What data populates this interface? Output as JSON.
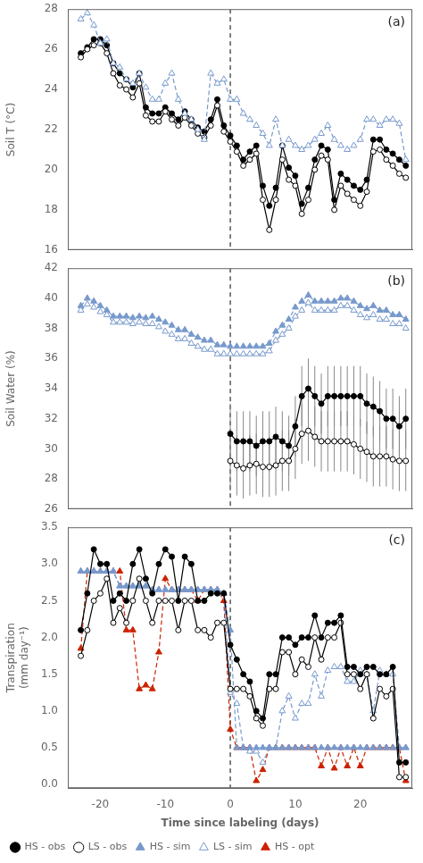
{
  "chart_data": [
    {
      "type": "line",
      "ylabel": "Soil T (°C)",
      "annotations": [
        "(a)"
      ],
      "xlim": [
        -25,
        28
      ],
      "xticks": [
        -20,
        -10,
        0,
        10,
        20
      ],
      "ylim": [
        16,
        28
      ],
      "yticks": [
        16,
        18,
        20,
        22,
        24,
        26,
        28
      ],
      "grid": false,
      "tick_labels": "y",
      "vlines": [
        0
      ],
      "x": [
        -23,
        -22,
        -21,
        -20,
        -19,
        -18,
        -17,
        -16,
        -15,
        -14,
        -13,
        -12,
        -11,
        -10,
        -9,
        -8,
        -7,
        -6,
        -5,
        -4,
        -3,
        -2,
        -1,
        0,
        1,
        2,
        3,
        4,
        5,
        6,
        7,
        8,
        9,
        10,
        11,
        12,
        13,
        14,
        15,
        16,
        17,
        18,
        19,
        20,
        21,
        22,
        23,
        24,
        25,
        26,
        27
      ],
      "series": [
        {
          "color": "#7799cc",
          "marker": "open-triangle",
          "line_style": "dashed",
          "values": [
            27.5,
            27.8,
            27.2,
            26.3,
            26.5,
            25.3,
            25.1,
            24.5,
            24.3,
            24.8,
            24.1,
            23.5,
            23.5,
            24.3,
            24.8,
            23.5,
            22.8,
            22.5,
            22.0,
            21.5,
            24.8,
            24.3,
            24.5,
            23.5,
            23.5,
            22.8,
            22.5,
            22.2,
            21.8,
            21.2,
            22.5,
            21.2,
            21.5,
            21.2,
            21.0,
            21.2,
            21.5,
            21.8,
            22.2,
            21.5,
            21.2,
            21.0,
            21.2,
            21.5,
            22.5,
            22.5,
            22.2,
            22.5,
            22.5,
            22.3,
            20.5
          ]
        },
        {
          "color": "#000000",
          "marker": "open-circle",
          "line_style": "solid",
          "values": [
            25.6,
            26.0,
            26.2,
            26.3,
            25.8,
            24.8,
            24.2,
            24.0,
            23.6,
            24.3,
            22.7,
            22.4,
            22.4,
            22.9,
            22.5,
            22.2,
            22.6,
            22.2,
            21.8,
            21.6,
            22.2,
            23.2,
            21.9,
            21.4,
            20.9,
            20.2,
            20.5,
            20.8,
            18.5,
            17.0,
            18.5,
            20.5,
            19.5,
            19.2,
            17.8,
            18.5,
            20.0,
            20.7,
            20.5,
            18.0,
            19.2,
            18.8,
            18.5,
            18.2,
            18.9,
            20.9,
            21.0,
            20.5,
            20.2,
            19.8,
            19.6
          ]
        },
        {
          "color": "#000000",
          "marker": "circle",
          "line_style": "solid",
          "values": [
            25.8,
            26.1,
            26.5,
            26.5,
            26.2,
            25.3,
            24.8,
            24.5,
            24.1,
            24.8,
            23.1,
            22.8,
            22.8,
            23.1,
            22.8,
            22.5,
            22.9,
            22.5,
            22.1,
            21.9,
            22.5,
            23.5,
            22.2,
            21.7,
            21.2,
            20.5,
            20.9,
            21.2,
            19.2,
            18.2,
            19.1,
            21.2,
            20.1,
            19.7,
            18.3,
            19.1,
            20.5,
            21.2,
            21.0,
            18.5,
            19.8,
            19.5,
            19.2,
            19.0,
            19.5,
            21.5,
            21.5,
            21.0,
            20.8,
            20.5,
            20.2
          ]
        }
      ]
    },
    {
      "type": "line",
      "ylabel": "Soil Water (%)",
      "annotations": [
        "(b)"
      ],
      "xlim": [
        -25,
        28
      ],
      "xticks": [
        -20,
        -10,
        0,
        10,
        20
      ],
      "ylim": [
        26,
        42
      ],
      "yticks": [
        26,
        28,
        30,
        32,
        34,
        36,
        38,
        40,
        42
      ],
      "grid": false,
      "tick_labels": "y",
      "vlines": [
        0
      ],
      "x": [
        -23,
        -22,
        -21,
        -20,
        -19,
        -18,
        -17,
        -16,
        -15,
        -14,
        -13,
        -12,
        -11,
        -10,
        -9,
        -8,
        -7,
        -6,
        -5,
        -4,
        -3,
        -2,
        -1,
        0,
        1,
        2,
        3,
        4,
        5,
        6,
        7,
        8,
        9,
        10,
        11,
        12,
        13,
        14,
        15,
        16,
        17,
        18,
        19,
        20,
        21,
        22,
        23,
        24,
        25,
        26,
        27
      ],
      "series": [
        {
          "color": "#7799cc",
          "marker": "open-triangle",
          "line_style": "dashed",
          "values": [
            39.2,
            39.6,
            39.4,
            39.1,
            38.9,
            38.4,
            38.4,
            38.4,
            38.3,
            38.4,
            38.3,
            38.3,
            38.1,
            37.8,
            37.6,
            37.3,
            37.3,
            37.0,
            36.8,
            36.6,
            36.6,
            36.3,
            36.3,
            36.3,
            36.3,
            36.3,
            36.3,
            36.3,
            36.3,
            36.5,
            37.2,
            37.6,
            38.0,
            38.8,
            39.2,
            39.7,
            39.2,
            39.2,
            39.2,
            39.2,
            39.5,
            39.5,
            39.2,
            38.9,
            38.7,
            38.9,
            38.6,
            38.6,
            38.3,
            38.3,
            38.0
          ]
        },
        {
          "color": "#7799cc",
          "marker": "triangle",
          "line_style": "dashed",
          "values": [
            39.5,
            40.0,
            39.8,
            39.5,
            39.2,
            38.8,
            38.8,
            38.8,
            38.7,
            38.8,
            38.7,
            38.8,
            38.6,
            38.4,
            38.2,
            37.9,
            37.9,
            37.6,
            37.4,
            37.2,
            37.2,
            36.9,
            36.9,
            36.8,
            36.8,
            36.8,
            36.8,
            36.8,
            36.8,
            37.0,
            37.8,
            38.2,
            38.6,
            39.4,
            39.8,
            40.2,
            39.8,
            39.8,
            39.8,
            39.8,
            40.0,
            40.0,
            39.8,
            39.5,
            39.3,
            39.5,
            39.2,
            39.2,
            38.9,
            38.9,
            38.6
          ]
        },
        {
          "color": "#000000",
          "marker": "open-circle",
          "line_style": "solid",
          "x": [
            0,
            1,
            2,
            3,
            4,
            5,
            6,
            7,
            8,
            9,
            10,
            11,
            12,
            13,
            14,
            15,
            16,
            17,
            18,
            19,
            20,
            21,
            22,
            23,
            24,
            25,
            26,
            27
          ],
          "values": [
            29.2,
            28.9,
            28.7,
            28.9,
            29.0,
            28.8,
            28.8,
            28.9,
            29.2,
            29.2,
            30.0,
            31.0,
            31.2,
            30.8,
            30.5,
            30.5,
            30.5,
            30.5,
            30.5,
            30.3,
            30.0,
            29.8,
            29.5,
            29.5,
            29.5,
            29.3,
            29.2,
            29.2
          ],
          "errors": [
            2.0,
            2.0,
            2.0,
            2.0,
            2.0,
            2.0,
            2.0,
            2.0,
            2.0,
            2.0,
            2.0,
            2.0,
            2.0,
            2.0,
            2.0,
            2.0,
            2.0,
            2.0,
            2.0,
            2.0,
            2.0,
            2.0,
            2.0,
            2.0,
            2.0,
            2.0,
            2.0,
            2.0
          ]
        },
        {
          "color": "#000000",
          "marker": "circle",
          "line_style": "solid",
          "x": [
            0,
            1,
            2,
            3,
            4,
            5,
            6,
            7,
            8,
            9,
            10,
            11,
            12,
            13,
            14,
            15,
            16,
            17,
            18,
            19,
            20,
            21,
            22,
            23,
            24,
            25,
            26,
            27
          ],
          "values": [
            31.0,
            30.5,
            30.5,
            30.5,
            30.2,
            30.5,
            30.5,
            30.8,
            30.5,
            30.2,
            31.5,
            33.5,
            34.0,
            33.5,
            33.0,
            33.5,
            33.5,
            33.5,
            33.5,
            33.5,
            33.5,
            33.0,
            32.8,
            32.5,
            32.0,
            32.0,
            31.5,
            32.0
          ],
          "errors": [
            2.0,
            2.0,
            2.0,
            2.0,
            2.0,
            2.0,
            2.0,
            2.0,
            2.0,
            2.0,
            2.0,
            2.0,
            2.0,
            2.0,
            2.0,
            2.0,
            2.0,
            2.0,
            2.0,
            2.0,
            2.0,
            2.0,
            2.0,
            2.0,
            2.0,
            2.0,
            2.0,
            2.0
          ]
        }
      ]
    },
    {
      "type": "line",
      "ylabel": "Transpiration\n(mm day⁻¹)",
      "xlabel": "Time since labeling (days)",
      "annotations": [
        "(c)"
      ],
      "xlim": [
        -25,
        28
      ],
      "xticks": [
        -20,
        -10,
        0,
        10,
        20
      ],
      "ylim": [
        -0.05,
        3.5
      ],
      "yticks": [
        {
          "value": 0,
          "label": "0.0"
        },
        0.5,
        {
          "value": 1,
          "label": "1.0"
        },
        1.5,
        {
          "value": 2,
          "label": "2.0"
        },
        2.5,
        {
          "value": 3,
          "label": "3.0"
        },
        3.5
      ],
      "grid": false,
      "legend": "lower left",
      "vlines": [
        0
      ],
      "x": [
        -23,
        -22,
        -21,
        -20,
        -19,
        -18,
        -17,
        -16,
        -15,
        -14,
        -13,
        -12,
        -11,
        -10,
        -9,
        -8,
        -7,
        -6,
        -5,
        -4,
        -3,
        -2,
        -1,
        0,
        1,
        2,
        3,
        4,
        5,
        6,
        7,
        8,
        9,
        10,
        11,
        12,
        13,
        14,
        15,
        16,
        17,
        18,
        19,
        20,
        21,
        22,
        23,
        24,
        25,
        26,
        27
      ],
      "series": [
        {
          "name": "HS - obs",
          "color": "#000000",
          "marker": "circle",
          "line_style": "solid",
          "values": [
            2.1,
            2.6,
            3.2,
            3.0,
            3.0,
            2.5,
            2.6,
            2.5,
            3.0,
            3.2,
            2.8,
            2.6,
            3.0,
            3.2,
            3.1,
            2.5,
            3.1,
            3.0,
            2.5,
            2.5,
            2.6,
            2.6,
            2.6,
            1.9,
            1.7,
            1.5,
            1.4,
            1.0,
            0.9,
            1.5,
            1.5,
            2.0,
            2.0,
            1.9,
            2.0,
            2.0,
            2.3,
            2.0,
            2.2,
            2.2,
            2.3,
            1.6,
            1.6,
            1.5,
            1.6,
            1.6,
            1.5,
            1.5,
            1.6,
            0.3,
            0.3
          ]
        },
        {
          "name": "LS - obs",
          "color": "#000000",
          "marker": "open-circle",
          "line_style": "solid",
          "values": [
            1.75,
            2.1,
            2.5,
            2.6,
            2.8,
            2.2,
            2.4,
            2.2,
            2.5,
            2.8,
            2.5,
            2.2,
            2.5,
            2.5,
            2.5,
            2.1,
            2.5,
            2.5,
            2.1,
            2.1,
            2.0,
            2.2,
            2.2,
            1.3,
            1.3,
            1.3,
            1.2,
            0.9,
            0.8,
            1.3,
            1.3,
            1.8,
            1.8,
            1.5,
            1.7,
            1.6,
            2.0,
            1.7,
            2.0,
            2.0,
            2.2,
            1.5,
            1.5,
            1.3,
            1.5,
            0.9,
            1.3,
            1.2,
            1.3,
            0.1,
            0.1
          ]
        },
        {
          "name": "HS - sim",
          "color": "#7799cc",
          "marker": "triangle",
          "line_style": "dashed",
          "values": [
            2.9,
            2.9,
            2.9,
            2.9,
            2.9,
            2.9,
            2.7,
            2.7,
            2.7,
            2.7,
            2.7,
            2.65,
            2.65,
            2.65,
            2.65,
            2.65,
            2.65,
            2.65,
            2.65,
            2.65,
            2.65,
            2.65,
            2.6,
            2.1,
            0.5,
            0.5,
            0.5,
            0.5,
            0.5,
            0.5,
            0.5,
            0.5,
            0.5,
            0.5,
            0.5,
            0.5,
            0.5,
            0.5,
            0.5,
            0.5,
            0.5,
            0.5,
            0.5,
            0.5,
            0.5,
            0.5,
            0.5,
            0.5,
            0.5,
            0.5,
            0.5
          ]
        },
        {
          "name": "LS - sim",
          "color": "#7799cc",
          "marker": "open-triangle",
          "line_style": "dashed",
          "values": [
            2.9,
            2.9,
            2.9,
            2.9,
            2.9,
            2.9,
            2.7,
            2.7,
            2.7,
            2.7,
            2.7,
            2.65,
            2.65,
            2.65,
            2.65,
            2.65,
            2.65,
            2.65,
            2.65,
            2.65,
            2.65,
            2.65,
            2.6,
            1.25,
            1.1,
            0.5,
            0.45,
            0.45,
            0.3,
            0.5,
            0.5,
            1.0,
            1.2,
            0.9,
            1.1,
            1.1,
            1.5,
            1.2,
            1.55,
            1.6,
            1.6,
            1.4,
            1.4,
            1.55,
            1.5,
            1.0,
            1.55,
            1.5,
            1.5,
            0.5,
            0.5
          ]
        },
        {
          "name": "HS - opt",
          "color": "#cc2200",
          "marker": "triangle",
          "line_style": "dashed",
          "values": [
            1.85,
            2.9,
            2.9,
            2.9,
            2.9,
            2.9,
            2.9,
            2.1,
            2.1,
            1.3,
            1.35,
            1.3,
            1.8,
            2.8,
            2.65,
            2.65,
            2.65,
            2.65,
            2.5,
            2.65,
            2.65,
            2.65,
            2.5,
            0.75,
            0.5,
            0.5,
            0.5,
            0.05,
            0.2,
            0.5,
            0.5,
            0.5,
            0.5,
            0.5,
            0.5,
            0.5,
            0.5,
            0.25,
            0.5,
            0.22,
            0.5,
            0.25,
            0.5,
            0.25,
            0.5,
            0.5,
            0.5,
            0.5,
            0.5,
            0.5,
            0.05
          ]
        }
      ]
    }
  ]
}
